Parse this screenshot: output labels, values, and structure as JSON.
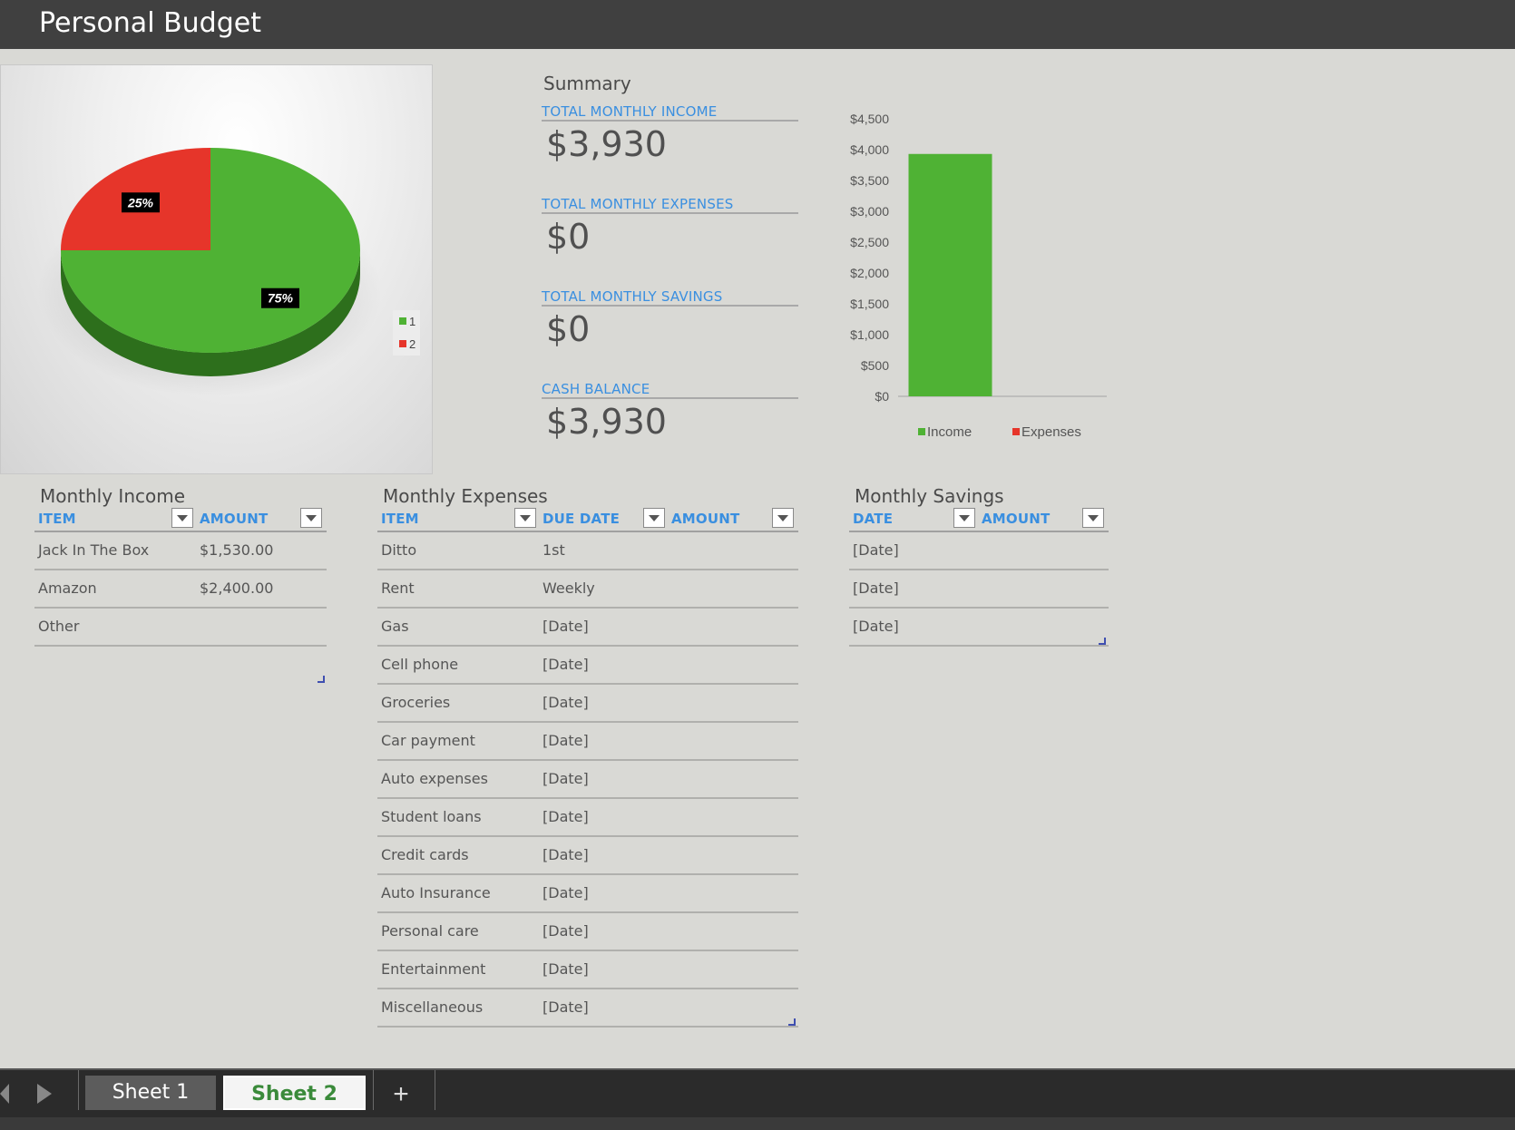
{
  "title": "Personal Budget",
  "pie_chart": {
    "slices": [
      {
        "label": "1",
        "percent": 75,
        "display": "75%",
        "color": "#4fb234"
      },
      {
        "label": "2",
        "percent": 25,
        "display": "25%",
        "color": "#e6352a"
      }
    ]
  },
  "summary": {
    "title": "Summary",
    "items": [
      {
        "label": "TOTAL MONTHLY INCOME",
        "value": "$3,930"
      },
      {
        "label": "TOTAL MONTHLY EXPENSES",
        "value": "$0"
      },
      {
        "label": "TOTAL MONTHLY SAVINGS",
        "value": "$0"
      },
      {
        "label": "CASH BALANCE",
        "value": "$3,930"
      }
    ]
  },
  "chart_data": {
    "type": "bar",
    "categories": [
      "Income",
      "Expenses"
    ],
    "values": [
      3930,
      0
    ],
    "colors": [
      "#4fb234",
      "#e6352a"
    ],
    "ylim": [
      0,
      4500
    ],
    "yticks": [
      "$0",
      "$500",
      "$1,000",
      "$1,500",
      "$2,000",
      "$2,500",
      "$3,000",
      "$3,500",
      "$4,000",
      "$4,500"
    ],
    "legend": [
      "Income",
      "Expenses"
    ],
    "legend_position": "bottom"
  },
  "income": {
    "title": "Monthly Income",
    "headers": [
      "ITEM",
      "AMOUNT"
    ],
    "rows": [
      [
        "Jack In The Box",
        "$1,530.00"
      ],
      [
        "Amazon",
        "$2,400.00"
      ],
      [
        "Other",
        ""
      ]
    ]
  },
  "expenses": {
    "title": "Monthly Expenses",
    "headers": [
      "ITEM",
      "DUE DATE",
      "AMOUNT"
    ],
    "rows": [
      [
        "Ditto",
        "1st",
        ""
      ],
      [
        "Rent",
        "Weekly",
        ""
      ],
      [
        "Gas",
        "[Date]",
        ""
      ],
      [
        "Cell phone",
        "[Date]",
        ""
      ],
      [
        "Groceries",
        "[Date]",
        ""
      ],
      [
        "Car payment",
        "[Date]",
        ""
      ],
      [
        "Auto expenses",
        "[Date]",
        ""
      ],
      [
        "Student loans",
        "[Date]",
        ""
      ],
      [
        "Credit cards",
        "[Date]",
        ""
      ],
      [
        "Auto Insurance",
        "[Date]",
        ""
      ],
      [
        "Personal care",
        "[Date]",
        ""
      ],
      [
        "Entertainment",
        "[Date]",
        ""
      ],
      [
        "Miscellaneous",
        "[Date]",
        ""
      ]
    ]
  },
  "savings": {
    "title": "Monthly Savings",
    "headers": [
      "DATE",
      "AMOUNT"
    ],
    "rows": [
      [
        "[Date]",
        ""
      ],
      [
        "[Date]",
        ""
      ],
      [
        "[Date]",
        ""
      ]
    ]
  },
  "tabs": {
    "sheets": [
      "Sheet 1",
      "Sheet 2"
    ],
    "active": "Sheet 2",
    "add_label": "+"
  }
}
